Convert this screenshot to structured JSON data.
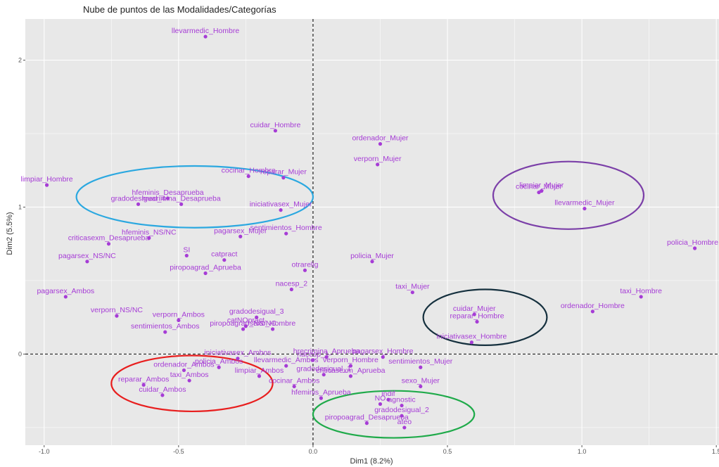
{
  "chart_data": {
    "type": "scatter",
    "title": "Nube de puntos de las Modalidades/Categorías",
    "xlabel": "Dim1 (8.2%)",
    "ylabel": "Dim2 (5.5%)",
    "xlim": [
      -1.07,
      1.51
    ],
    "ylim": [
      -0.62,
      2.28
    ],
    "x_ticks": [
      -1.0,
      -0.5,
      0.0,
      0.5,
      1.0,
      1.5
    ],
    "x_tick_labels": [
      "-1.0",
      "-0.5",
      "0.0",
      "0.5",
      "1.0",
      "1.5"
    ],
    "y_ticks": [
      0,
      1,
      2
    ],
    "y_tick_labels": [
      "0",
      "1",
      "2"
    ],
    "grid": true,
    "reference_lines": {
      "x": 0,
      "y": 0
    },
    "colors": {
      "panel": "#e8e8e8",
      "grid": "#ffffff",
      "points": "#a63cd6",
      "labels": "#a63cd6",
      "reference": "#222222"
    },
    "points": [
      {
        "label": "llevarmedic_Hombre",
        "x": -0.4,
        "y": 2.16
      },
      {
        "label": "cuidar_Hombre",
        "x": -0.14,
        "y": 1.52
      },
      {
        "label": "ordenador_Mujer",
        "x": 0.25,
        "y": 1.43
      },
      {
        "label": "verporn_Mujer",
        "x": 0.24,
        "y": 1.29
      },
      {
        "label": "reparar_Mujer",
        "x": -0.11,
        "y": 1.2
      },
      {
        "label": "cocinar_Hombre",
        "x": -0.24,
        "y": 1.21
      },
      {
        "label": "limpiar_Hombre",
        "x": -0.99,
        "y": 1.15
      },
      {
        "label": "hfeminis_Desaprueba",
        "x": -0.54,
        "y": 1.06
      },
      {
        "label": "iniciativasex_Mujer",
        "x": -0.12,
        "y": 0.98
      },
      {
        "label": "gradodesigual_4",
        "x": -0.65,
        "y": 1.02
      },
      {
        "label": "hrecrimina_Desaprueba",
        "x": -0.49,
        "y": 1.02
      },
      {
        "label": "sentimientos_Hombre",
        "x": -0.1,
        "y": 0.82
      },
      {
        "label": "hfeminis_NS/NC",
        "x": -0.61,
        "y": 0.79
      },
      {
        "label": "pagarsex_Mujer",
        "x": -0.27,
        "y": 0.8
      },
      {
        "label": "criticasexm_Desaprueba",
        "x": -0.76,
        "y": 0.75
      },
      {
        "label": "SI",
        "x": -0.47,
        "y": 0.67
      },
      {
        "label": "catpract",
        "x": -0.33,
        "y": 0.64
      },
      {
        "label": "pagarsex_NS/NC",
        "x": -0.84,
        "y": 0.63
      },
      {
        "label": "piropoagrad_Aprueba",
        "x": -0.4,
        "y": 0.55
      },
      {
        "label": "policia_Mujer",
        "x": 0.22,
        "y": 0.63
      },
      {
        "label": "otrarelig",
        "x": -0.03,
        "y": 0.57
      },
      {
        "label": "nacesp_2",
        "x": -0.08,
        "y": 0.44
      },
      {
        "label": "taxi_Mujer",
        "x": 0.37,
        "y": 0.42
      },
      {
        "label": "pagarsex_Ambos",
        "x": -0.92,
        "y": 0.39
      },
      {
        "label": "verporn_NS/NC",
        "x": -0.73,
        "y": 0.26
      },
      {
        "label": "gradodesigual_3",
        "x": -0.21,
        "y": 0.25
      },
      {
        "label": "verporn_Ambos",
        "x": -0.5,
        "y": 0.23
      },
      {
        "label": "catNOpract",
        "x": -0.25,
        "y": 0.19
      },
      {
        "label": "sexo_Hombre",
        "x": -0.15,
        "y": 0.17
      },
      {
        "label": "sentimientos_Ambos",
        "x": -0.55,
        "y": 0.15
      },
      {
        "label": "piropoagrad_NS/NC",
        "x": -0.26,
        "y": 0.17
      },
      {
        "label": "policia_Hombre",
        "x": 1.42,
        "y": 0.72
      },
      {
        "label": "taxi_Hombre",
        "x": 1.22,
        "y": 0.39
      },
      {
        "label": "ordenador_Hombre",
        "x": 1.04,
        "y": 0.29
      },
      {
        "label": "cuidar_Mujer",
        "x": 0.6,
        "y": 0.27
      },
      {
        "label": "reparar_Hombre",
        "x": 0.61,
        "y": 0.22
      },
      {
        "label": "iniciativasex_Hombre",
        "x": 0.59,
        "y": 0.08
      },
      {
        "label": "limpiar_Mujer",
        "x": 0.85,
        "y": 1.11
      },
      {
        "label": "cocinar_Mujer",
        "x": 0.84,
        "y": 1.1
      },
      {
        "label": "llevarmedic_Mujer",
        "x": 1.01,
        "y": 0.99
      },
      {
        "label": "iniciativasex_Ambos",
        "x": -0.28,
        "y": -0.03
      },
      {
        "label": "nacesp_1",
        "x": 0.0,
        "y": -0.04
      },
      {
        "label": "hrecrimina_Aprueba",
        "x": 0.05,
        "y": -0.02
      },
      {
        "label": "pagarsex_Hombre",
        "x": 0.26,
        "y": -0.02
      },
      {
        "label": "ordenador_Ambos",
        "x": -0.48,
        "y": -0.11
      },
      {
        "label": "policia_Ambos",
        "x": -0.35,
        "y": -0.09
      },
      {
        "label": "llevarmedic_Ambos",
        "x": -0.1,
        "y": -0.08
      },
      {
        "label": "verporn_Hombre",
        "x": 0.14,
        "y": -0.08
      },
      {
        "label": "sentimientos_Mujer",
        "x": 0.4,
        "y": -0.09
      },
      {
        "label": "limpiar_Ambos",
        "x": -0.2,
        "y": -0.15
      },
      {
        "label": "gradodesigual_1",
        "x": 0.04,
        "y": -0.14
      },
      {
        "label": "criticasexm_Aprueba",
        "x": 0.14,
        "y": -0.15
      },
      {
        "label": "taxi_Ambos",
        "x": -0.46,
        "y": -0.18
      },
      {
        "label": "reparar_Ambos",
        "x": -0.63,
        "y": -0.21
      },
      {
        "label": "cocinar_Ambos",
        "x": -0.07,
        "y": -0.22
      },
      {
        "label": "sexo_Mujer",
        "x": 0.4,
        "y": -0.22
      },
      {
        "label": "cuidar_Ambos",
        "x": -0.56,
        "y": -0.28
      },
      {
        "label": "hfeminis_Aprueba",
        "x": 0.03,
        "y": -0.3
      },
      {
        "label": "indif",
        "x": 0.28,
        "y": -0.31
      },
      {
        "label": "agnostic",
        "x": 0.33,
        "y": -0.35
      },
      {
        "label": "NO",
        "x": 0.25,
        "y": -0.34
      },
      {
        "label": "gradodesigual_2",
        "x": 0.33,
        "y": -0.42
      },
      {
        "label": "piropoagrad_Desaprueba",
        "x": 0.2,
        "y": -0.47
      },
      {
        "label": "ateo",
        "x": 0.34,
        "y": -0.5
      }
    ],
    "annotations": [
      {
        "shape": "ellipse",
        "color": "#2ba8e0",
        "cx": -0.44,
        "cy": 1.07,
        "rx": 0.44,
        "ry": 0.21
      },
      {
        "shape": "ellipse",
        "color": "#7b3fa8",
        "cx": 0.95,
        "cy": 1.08,
        "rx": 0.28,
        "ry": 0.23
      },
      {
        "shape": "ellipse",
        "color": "#15303e",
        "cx": 0.64,
        "cy": 0.25,
        "rx": 0.23,
        "ry": 0.19
      },
      {
        "shape": "ellipse",
        "color": "#e81e1e",
        "cx": -0.45,
        "cy": -0.2,
        "rx": 0.3,
        "ry": 0.19
      },
      {
        "shape": "ellipse",
        "color": "#1faa4a",
        "cx": 0.3,
        "cy": -0.41,
        "rx": 0.3,
        "ry": 0.16
      }
    ]
  }
}
